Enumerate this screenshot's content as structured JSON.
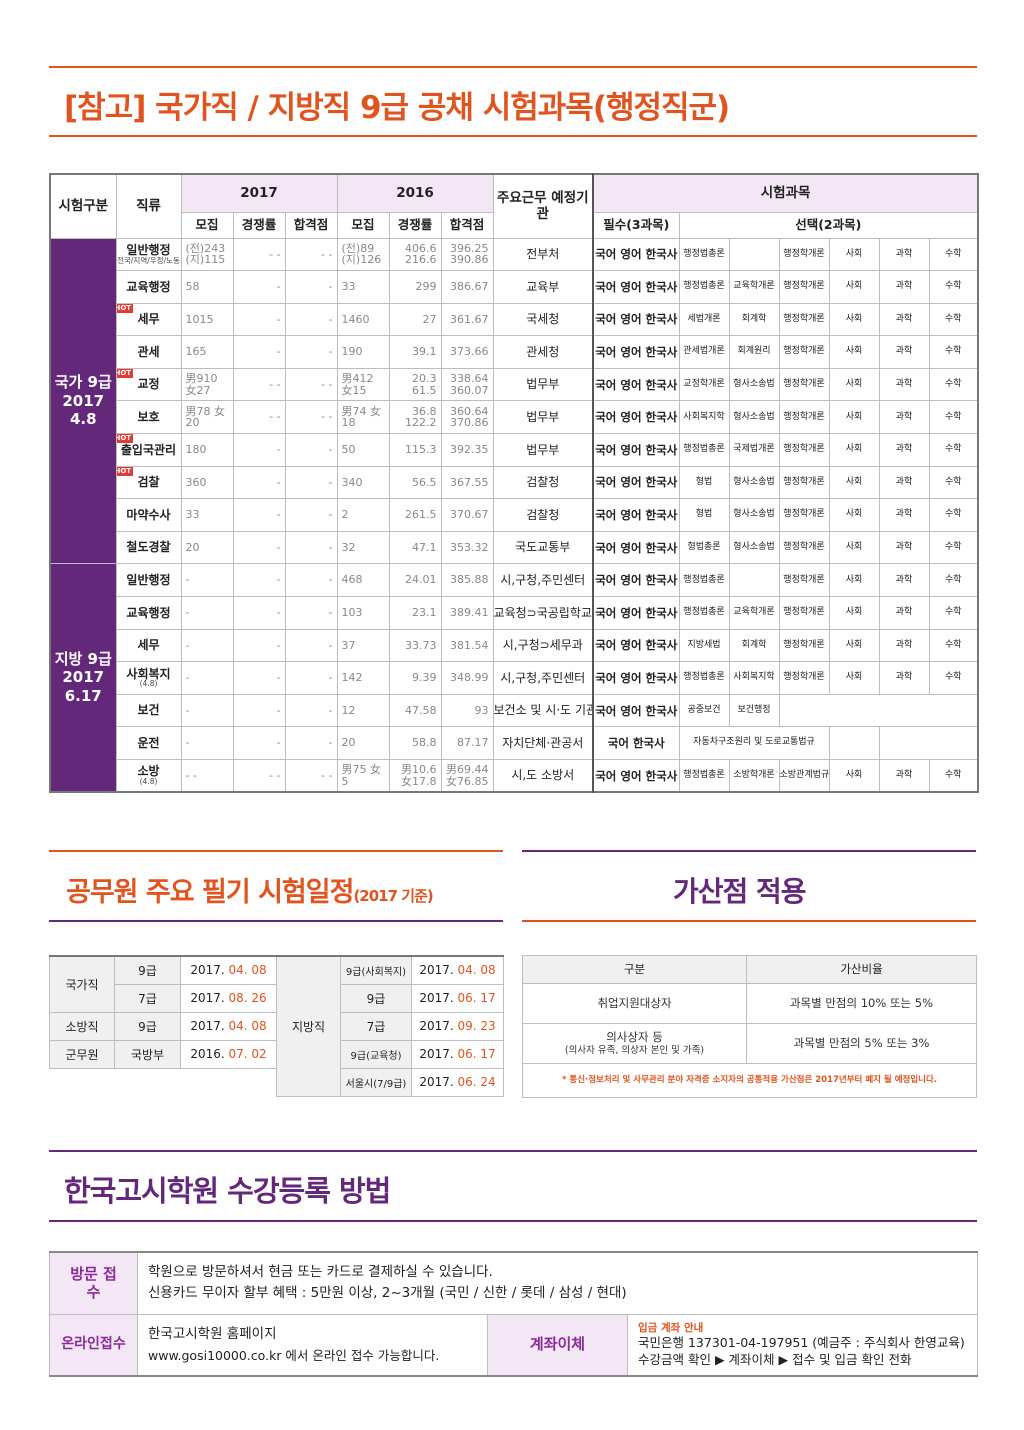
{
  "colors": {
    "accent_orange": "#e0541f",
    "accent_purple": "#64287a",
    "light_purple": "#f3e6f5",
    "hot_red": "#e53935"
  },
  "section1": {
    "title": "[참고] 국가직 / 지방직 9급 공채 시험과목(행정직군)"
  },
  "main_table": {
    "header": {
      "exam_type": "시험구분",
      "job": "직류",
      "year2017": "2017",
      "year2016": "2016",
      "agency": "주요근무 예정기관",
      "subjects": "시험과목",
      "recruit": "모집",
      "competition": "경쟁률",
      "pass": "합격점",
      "required": "필수(3과목)",
      "optional": "선택(2과목)"
    },
    "national_label": "국가 9급 2017 4.8",
    "local_label": "지방 9급 2017 6.17",
    "hot_label": "HOT",
    "rows": [
      {
        "job": "일반행정",
        "sub": "전국/지역/우정/노동",
        "r17": "(전)243 (지)115",
        "c17": "- -",
        "p17": "- -",
        "r16": "(전)89 (지)126",
        "c16": "406.6 216.6",
        "p16": "396.25 390.86",
        "agency": "전부처",
        "req": "국어 영어 한국사",
        "o1": "행정법총론",
        "o2": "",
        "o3": "행정학개론",
        "o4": "사회",
        "o5": "과학",
        "o6": "수학"
      },
      {
        "job": "교육행정",
        "r17": "58",
        "c17": "-",
        "p17": "-",
        "r16": "33",
        "c16": "299",
        "p16": "386.67",
        "agency": "교육부",
        "req": "국어 영어 한국사",
        "o1": "행정법총론",
        "o2": "교육학개론",
        "o3": "행정학개론",
        "o4": "사회",
        "o5": "과학",
        "o6": "수학"
      },
      {
        "job": "세무",
        "hot": true,
        "r17": "1015",
        "c17": "-",
        "p17": "-",
        "r16": "1460",
        "c16": "27",
        "p16": "361.67",
        "agency": "국세청",
        "req": "국어 영어 한국사",
        "o1": "세법개론",
        "o2": "회계학",
        "o3": "행정학개론",
        "o4": "사회",
        "o5": "과학",
        "o6": "수학"
      },
      {
        "job": "관세",
        "r17": "165",
        "c17": "-",
        "p17": "-",
        "r16": "190",
        "c16": "39.1",
        "p16": "373.66",
        "agency": "관세청",
        "req": "국어 영어 한국사",
        "o1": "관세법개론",
        "o2": "회계원리",
        "o3": "행정학개론",
        "o4": "사회",
        "o5": "과학",
        "o6": "수학"
      },
      {
        "job": "교정",
        "hot": true,
        "r17": "男910 女27",
        "c17": "- -",
        "p17": "- -",
        "r16": "男412 女15",
        "c16": "20.3 61.5",
        "p16": "338.64 360.07",
        "agency": "법무부",
        "req": "국어 영어 한국사",
        "o1": "교정학개론",
        "o2": "형사소송법",
        "o3": "행정학개론",
        "o4": "사회",
        "o5": "과학",
        "o6": "수학"
      },
      {
        "job": "보호",
        "r17": "男78 女20",
        "c17": "- -",
        "p17": "- -",
        "r16": "男74 女18",
        "c16": "36.8 122.2",
        "p16": "360.64 370.86",
        "agency": "법무부",
        "req": "국어 영어 한국사",
        "o1": "사회복지학",
        "o2": "형사소송법",
        "o3": "행정학개론",
        "o4": "사회",
        "o5": "과학",
        "o6": "수학"
      },
      {
        "job": "출입국관리",
        "hot": true,
        "r17": "180",
        "c17": "-",
        "p17": "-",
        "r16": "50",
        "c16": "115.3",
        "p16": "392.35",
        "agency": "법무부",
        "req": "국어 영어 한국사",
        "o1": "행정법총론",
        "o2": "국제법개론",
        "o3": "행정학개론",
        "o4": "사회",
        "o5": "과학",
        "o6": "수학"
      },
      {
        "job": "검찰",
        "hot": true,
        "r17": "360",
        "c17": "-",
        "p17": "-",
        "r16": "340",
        "c16": "56.5",
        "p16": "367.55",
        "agency": "검찰청",
        "req": "국어 영어 한국사",
        "o1": "형법",
        "o2": "형사소송법",
        "o3": "행정학개론",
        "o4": "사회",
        "o5": "과학",
        "o6": "수학"
      },
      {
        "job": "마약수사",
        "r17": "33",
        "c17": "-",
        "p17": "-",
        "r16": "2",
        "c16": "261.5",
        "p16": "370.67",
        "agency": "검찰청",
        "req": "국어 영어 한국사",
        "o1": "형법",
        "o2": "형사소송법",
        "o3": "행정학개론",
        "o4": "사회",
        "o5": "과학",
        "o6": "수학"
      },
      {
        "job": "철도경찰",
        "r17": "20",
        "c17": "-",
        "p17": "-",
        "r16": "32",
        "c16": "47.1",
        "p16": "353.32",
        "agency": "국도교통부",
        "req": "국어 영어 한국사",
        "o1": "형법총론",
        "o2": "형사소송법",
        "o3": "행정학개론",
        "o4": "사회",
        "o5": "과학",
        "o6": "수학"
      },
      {
        "job": "일반행정",
        "r17": "-",
        "c17": "-",
        "p17": "-",
        "r16": "468",
        "c16": "24.01",
        "p16": "385.88",
        "agency": "시,구청,주민센터",
        "req": "국어 영어 한국사",
        "o1": "행정법총론",
        "o2": "",
        "o3": "행정학개론",
        "o4": "사회",
        "o5": "과학",
        "o6": "수학"
      },
      {
        "job": "교육행정",
        "r17": "-",
        "c17": "-",
        "p17": "-",
        "r16": "103",
        "c16": "23.1",
        "p16": "389.41",
        "agency": "교육청⊃국공립학교",
        "req": "국어 영어 한국사",
        "o1": "행정법총론",
        "o2": "교육학개론",
        "o3": "행정학개론",
        "o4": "사회",
        "o5": "과학",
        "o6": "수학"
      },
      {
        "job": "세무",
        "r17": "-",
        "c17": "-",
        "p17": "-",
        "r16": "37",
        "c16": "33.73",
        "p16": "381.54",
        "agency": "시,구청⊃세무과",
        "req": "국어 영어 한국사",
        "o1": "지방세법",
        "o2": "회계학",
        "o3": "행정학개론",
        "o4": "사회",
        "o5": "과학",
        "o6": "수학"
      },
      {
        "job": "사회복지",
        "sub": "(4.8)",
        "r17": "-",
        "c17": "-",
        "p17": "-",
        "r16": "142",
        "c16": "9.39",
        "p16": "348.99",
        "agency": "시,구청,주민센터",
        "req": "국어 영어 한국사",
        "o1": "행정법총론",
        "o2": "사회복지학",
        "o3": "행정학개론",
        "o4": "사회",
        "o5": "과학",
        "o6": "수학"
      },
      {
        "job": "보건",
        "r17": "-",
        "c17": "-",
        "p17": "-",
        "r16": "12",
        "c16": "47.58",
        "p16": "93",
        "agency": "보건소 및 시·도 기관",
        "req": "국어 영어 한국사",
        "o1": "공중보건",
        "o2": "보건행정"
      },
      {
        "job": "운전",
        "r17": "-",
        "c17": "-",
        "p17": "-",
        "r16": "20",
        "c16": "58.8",
        "p16": "87.17",
        "agency": "자치단체·관공서",
        "req": "국어         한국사",
        "o1": "자동차구조원리 및 도로교통법규"
      },
      {
        "job": "소방",
        "sub": "(4.8)",
        "r17": "- -",
        "c17": "- -",
        "p17": "- -",
        "r16": "男75 女5",
        "c16": "男10.6 女17.8",
        "p16": "男69.44 女76.85",
        "agency": "시,도 소방서",
        "req": "국어 영어 한국사",
        "o1": "행정법총론",
        "o2": "소방학개론",
        "o3": "소방관계법규",
        "o4": "사회",
        "o5": "과학",
        "o6": "수학"
      }
    ]
  },
  "section2": {
    "title": "공무원 주요 필기 시험일정",
    "title_suffix": "(2017 기준)"
  },
  "schedule": {
    "left": [
      {
        "cat": "국가직",
        "grade": "9급",
        "date_pre": "2017. ",
        "date_red": "04. 08"
      },
      {
        "cat": "",
        "grade": "7급",
        "date_pre": "2017. ",
        "date_red": "08. 26"
      },
      {
        "cat": "소방직",
        "grade": "9급",
        "date_pre": "2017. ",
        "date_red": "04. 08"
      },
      {
        "cat": "군무원",
        "grade": "국방부",
        "date_pre": "2016. ",
        "date_red": "07. 02"
      }
    ],
    "local_label": "지방직",
    "right": [
      {
        "grade": "9급(사회복지)",
        "date_pre": "2017. ",
        "date_red": "04. 08"
      },
      {
        "grade": "9급",
        "date_pre": "2017. ",
        "date_red": "06. 17"
      },
      {
        "grade": "7급",
        "date_pre": "2017. ",
        "date_red": "09. 23"
      },
      {
        "grade": "9급(교육청)",
        "date_pre": "2017. ",
        "date_red": "06. 17"
      },
      {
        "grade": "서울시(7/9급)",
        "date_pre": "2017. ",
        "date_red": "06. 24"
      }
    ]
  },
  "section3": {
    "title": "가산점 적용"
  },
  "bonus": {
    "col1": "구분",
    "col2": "가산비율",
    "r1_label": "취업지원대상자",
    "r1_value": "과목별 만점의 10% 또는 5%",
    "r2_label": "의사상자 등",
    "r2_sub": "(의사자 유족, 의상자 본인 및 가족)",
    "r2_value": "과목별 만점의 5% 또는 3%",
    "note": "* 통신·정보처리 및 사무관리 분야 자격증 소지자의 공통적용 가산점은 2017년부터 폐지 될 예정입니다."
  },
  "section4": {
    "title": "한국고시학원 수강등록 방법"
  },
  "registration": {
    "visit_label": "방문 접수",
    "visit_line1": "학원으로 방문하셔서 현금 또는 카드로 결제하실 수 있습니다.",
    "visit_line2": "신용카드 무이자 할부 혜택 : 5만원 이상, 2~3개월 (국민 / 신한 / 롯데 / 삼성 / 현대)",
    "online_label": "온라인접수",
    "online_line1": "한국고시학원 홈페이지",
    "online_line2": "www.gosi10000.co.kr 에서 온라인 접수 가능합니다.",
    "transfer_label": "계좌이체",
    "transfer_title": "입금 계좌 안내",
    "transfer_line1": "국민은행 137301-04-197951 (예금주 : 주식회사 한영교육)",
    "transfer_line2": "수강금액 확인 ▶ 계좌이체 ▶ 접수 및 입금 확인 전화"
  }
}
